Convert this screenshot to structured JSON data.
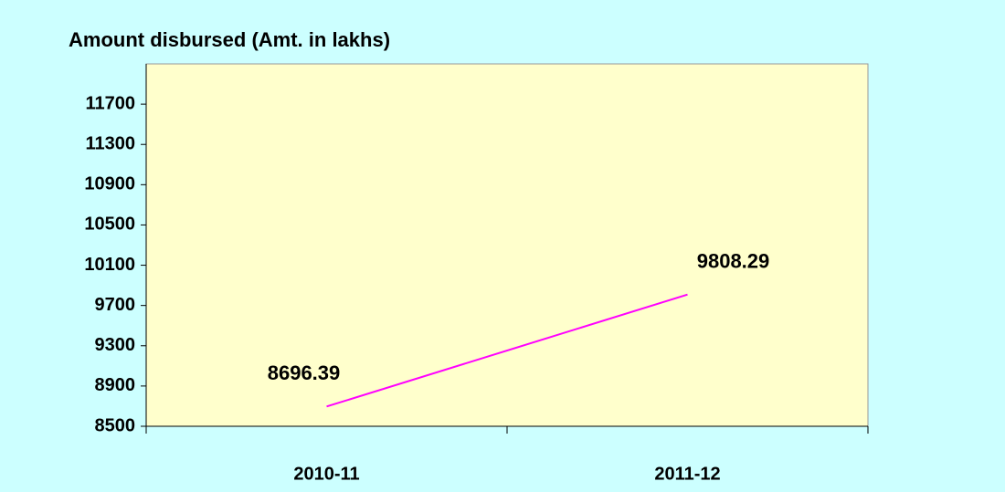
{
  "chart_data": {
    "type": "line",
    "title": "Amount disbursed (Amt. in lakhs)",
    "categories": [
      "2010-11",
      "2011-12"
    ],
    "series": [
      {
        "name": "Amount disbursed",
        "color": "#ff00ff",
        "values": [
          8696.39,
          9808.29
        ]
      }
    ],
    "ylim": [
      8500,
      12100
    ],
    "yticks": [
      8500,
      8900,
      9300,
      9700,
      10100,
      10500,
      10900,
      11300,
      11700
    ]
  }
}
